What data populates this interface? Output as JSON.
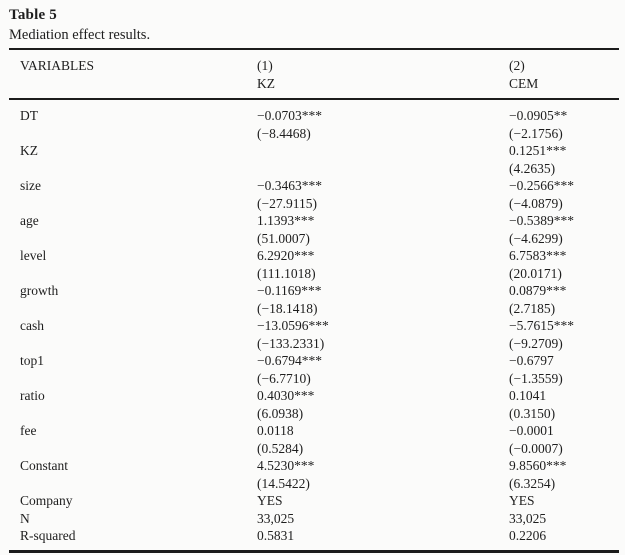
{
  "page": {
    "title": "Table 5",
    "subtitle": "Mediation effect results."
  },
  "table": {
    "columns": [
      {
        "label": "VARIABLES",
        "sublabel": ""
      },
      {
        "label": "(1)",
        "sublabel": "KZ"
      },
      {
        "label": "(2)",
        "sublabel": "CEM"
      }
    ],
    "rows": [
      {
        "label": "DT",
        "col1": [
          "−0.0703***",
          "(−8.4468)"
        ],
        "col2": [
          "−0.0905**",
          "(−2.1756)"
        ]
      },
      {
        "label": "KZ",
        "col1": [
          "",
          ""
        ],
        "col2": [
          "0.1251***",
          "(4.2635)"
        ]
      },
      {
        "label": "size",
        "col1": [
          "−0.3463***",
          "(−27.9115)"
        ],
        "col2": [
          "−0.2566***",
          "(−4.0879)"
        ]
      },
      {
        "label": "age",
        "col1": [
          "1.1393***",
          "(51.0007)"
        ],
        "col2": [
          "−0.5389***",
          "(−4.6299)"
        ]
      },
      {
        "label": "level",
        "col1": [
          "6.2920***",
          "(111.1018)"
        ],
        "col2": [
          "6.7583***",
          "(20.0171)"
        ]
      },
      {
        "label": "growth",
        "col1": [
          "−0.1169***",
          "(−18.1418)"
        ],
        "col2": [
          "0.0879***",
          "(2.7185)"
        ]
      },
      {
        "label": "cash",
        "col1": [
          "−13.0596***",
          "(−133.2331)"
        ],
        "col2": [
          "−5.7615***",
          "(−9.2709)"
        ]
      },
      {
        "label": "top1",
        "col1": [
          "−0.6794***",
          "(−6.7710)"
        ],
        "col2": [
          "−0.6797",
          "(−1.3559)"
        ]
      },
      {
        "label": "ratio",
        "col1": [
          "0.4030***",
          "(6.0938)"
        ],
        "col2": [
          "0.1041",
          "(0.3150)"
        ]
      },
      {
        "label": "fee",
        "col1": [
          "0.0118",
          "(0.5284)"
        ],
        "col2": [
          "−0.0001",
          "(−0.0007)"
        ]
      },
      {
        "label": "Constant",
        "col1": [
          "4.5230***",
          "(14.5422)"
        ],
        "col2": [
          "9.8560***",
          "(6.3254)"
        ]
      },
      {
        "label": "Company",
        "col1": [
          "YES"
        ],
        "col2": [
          "YES"
        ]
      },
      {
        "label": "N",
        "col1": [
          "33,025"
        ],
        "col2": [
          "33,025"
        ]
      },
      {
        "label": "R-squared",
        "col1": [
          "0.5831"
        ],
        "col2": [
          "0.2206"
        ]
      }
    ]
  }
}
